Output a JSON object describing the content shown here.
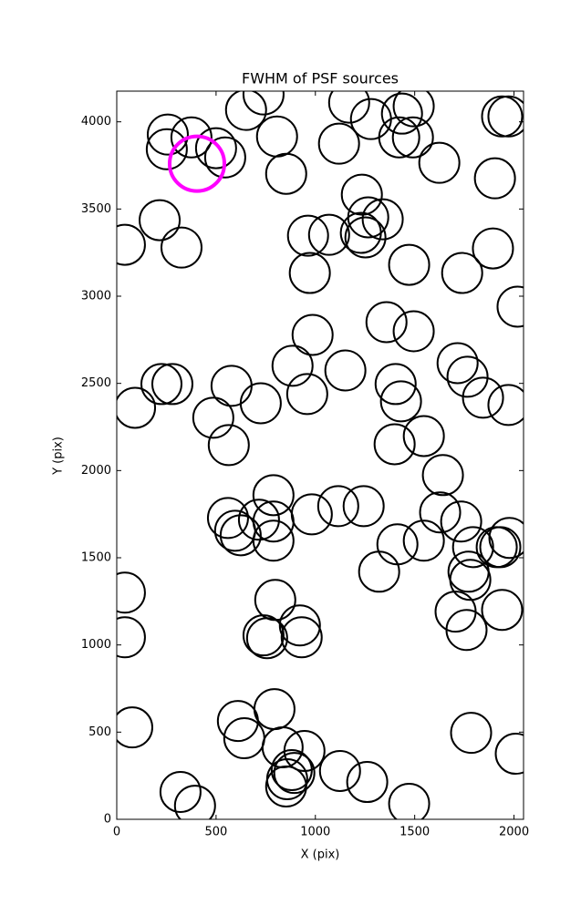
{
  "chart_data": {
    "type": "scatter",
    "title": "FWHM of PSF sources",
    "x_label": "X (pix)",
    "y_label": "Y (pix)",
    "xlim": [
      0,
      2048
    ],
    "ylim": [
      0,
      4176
    ],
    "xticks": [
      0,
      500,
      1000,
      1500,
      2000
    ],
    "yticks": [
      0,
      500,
      1000,
      1500,
      2000,
      2500,
      3000,
      3500,
      4000
    ],
    "series": [
      {
        "color": "#000000",
        "x": [
          257,
          376,
          252,
          500,
          546,
          651,
          739,
          807,
          853,
          1170,
          1280,
          1119,
          1436,
          1495,
          1422,
          1491,
          1624,
          1940,
          1972,
          1904,
          1234,
          1266,
          1339,
          1229,
          1252,
          963,
          1069,
          972,
          216,
          41,
          326,
          1472,
          1739,
          1894,
          2018,
          1358,
          1495,
          986,
          885,
          959,
          1151,
          578,
          725,
          225,
          280,
          92,
          486,
          564,
          1404,
          1431,
          1716,
          1766,
          1844,
          1972,
          1546,
          1399,
          1642,
          789,
          560,
          596,
          624,
          716,
          789,
          789,
          982,
          1115,
          1243,
          1628,
          1734,
          1413,
          1546,
          1321,
          1794,
          1771,
          1780,
          1913,
          1931,
          1977,
          1706,
          1761,
          1940,
          41,
          41,
          798,
          922,
          931,
          739,
          757,
          78,
          610,
          642,
          794,
          835,
          945,
          881,
          858,
          853,
          894,
          1124,
          1261,
          321,
          394,
          1472,
          1784,
          2009
        ],
        "y": [
          3927,
          3911,
          3843,
          3849,
          3796,
          4068,
          4157,
          3916,
          3702,
          4110,
          4016,
          3875,
          4047,
          4089,
          3911,
          3911,
          3765,
          4031,
          4031,
          3676,
          3582,
          3452,
          3441,
          3363,
          3337,
          3347,
          3352,
          3133,
          3436,
          3295,
          3279,
          3180,
          3133,
          3274,
          2940,
          2851,
          2799,
          2778,
          2601,
          2439,
          2574,
          2486,
          2386,
          2496,
          2496,
          2360,
          2303,
          2146,
          2496,
          2397,
          2616,
          2538,
          2418,
          2376,
          2198,
          2151,
          1974,
          1859,
          1728,
          1655,
          1629,
          1718,
          1708,
          1598,
          1749,
          1796,
          1796,
          1760,
          1708,
          1577,
          1598,
          1420,
          1561,
          1420,
          1373,
          1561,
          1561,
          1614,
          1191,
          1086,
          1201,
          1300,
          1044,
          1258,
          1112,
          1044,
          1055,
          1039,
          527,
          564,
          465,
          632,
          413,
          392,
          282,
          230,
          188,
          266,
          277,
          214,
          157,
          78,
          89,
          496,
          376
        ]
      },
      {
        "color": "#ff00ff",
        "x": [
          404
        ],
        "y": [
          3760
        ]
      }
    ]
  }
}
